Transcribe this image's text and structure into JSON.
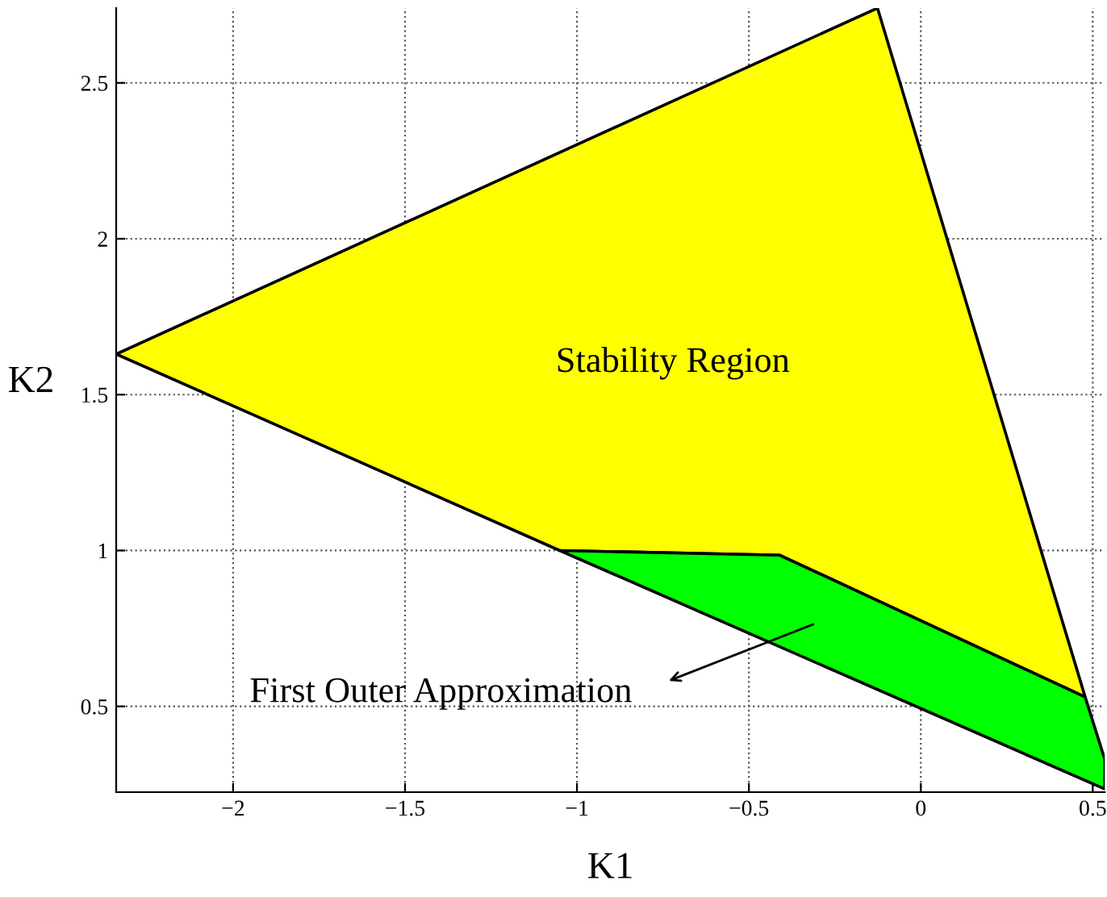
{
  "chart_data": {
    "type": "area",
    "xlabel": "K1",
    "ylabel": "K2",
    "xlim": [
      -2.34,
      0.535
    ],
    "ylim": [
      0.225,
      2.74
    ],
    "xticks": [
      {
        "value": -2,
        "label": "−2"
      },
      {
        "value": -1.5,
        "label": "−1.5"
      },
      {
        "value": -1,
        "label": "−1"
      },
      {
        "value": -0.5,
        "label": "−0.5"
      },
      0,
      0.5
    ],
    "yticks": [
      0.5,
      1,
      1.5,
      2,
      2.5
    ],
    "grid": true,
    "line_style": "dotted",
    "series": [
      {
        "color": "#ffff00",
        "x": [
          -2.34,
          -0.126,
          0.478,
          -0.41,
          -1.05,
          -2.34
        ],
        "values": [
          1.63,
          2.74,
          0.53,
          0.985,
          1.0,
          1.63
        ]
      },
      {
        "color": "#00ff00",
        "x": [
          -1.05,
          -0.41,
          0.478,
          0.535,
          0.535,
          -1.05
        ],
        "values": [
          1.0,
          0.985,
          0.53,
          0.33,
          0.235,
          1.0
        ]
      }
    ],
    "annotations": [
      "Stability Region",
      "First Outer Approximation"
    ]
  }
}
